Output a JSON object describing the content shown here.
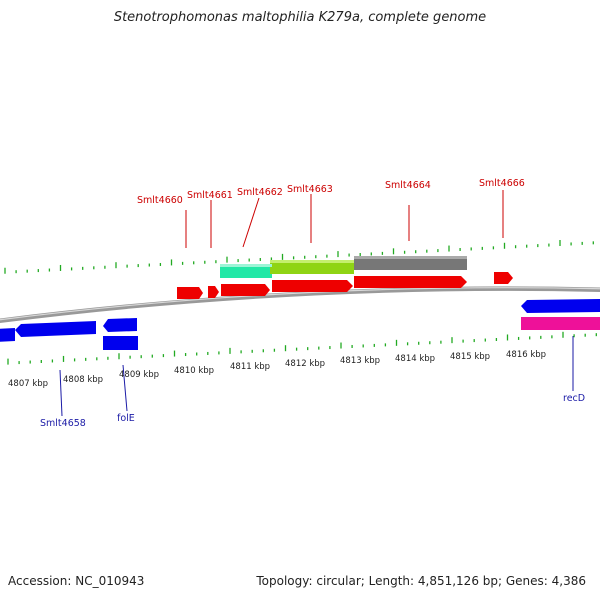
{
  "title": "Stenotrophomonas maltophilia K279a, complete genome",
  "footer": {
    "accession": "Accession: NC_010943",
    "topology": "Topology: circular; Length: 4,851,126 bp; Genes: 4,386"
  },
  "colors": {
    "forward_cds": "#ee0000",
    "reverse_cds": "#0000ee",
    "pink_feature": "#ee1199",
    "backbone": "#888888",
    "ticks": "#22aa22",
    "label_red": "#cc0000",
    "label_blue": "#1a1aa6"
  },
  "kbp_labels": [
    {
      "text": "4807 kbp"
    },
    {
      "text": "4808 kbp"
    },
    {
      "text": "4809 kbp"
    },
    {
      "text": "4810 kbp"
    },
    {
      "text": "4811 kbp"
    },
    {
      "text": "4812 kbp"
    },
    {
      "text": "4813 kbp"
    },
    {
      "text": "4814 kbp"
    },
    {
      "text": "4815 kbp"
    },
    {
      "text": "4816 kbp"
    }
  ],
  "top_labels": [
    {
      "text": "Smlt4660"
    },
    {
      "text": "Smlt4661"
    },
    {
      "text": "Smlt4662"
    },
    {
      "text": "Smlt4663"
    },
    {
      "text": "Smlt4664"
    },
    {
      "text": "Smlt4666"
    }
  ],
  "bottom_labels": [
    {
      "text": "Smlt4658"
    },
    {
      "text": "folE"
    },
    {
      "text": "recD"
    }
  ]
}
